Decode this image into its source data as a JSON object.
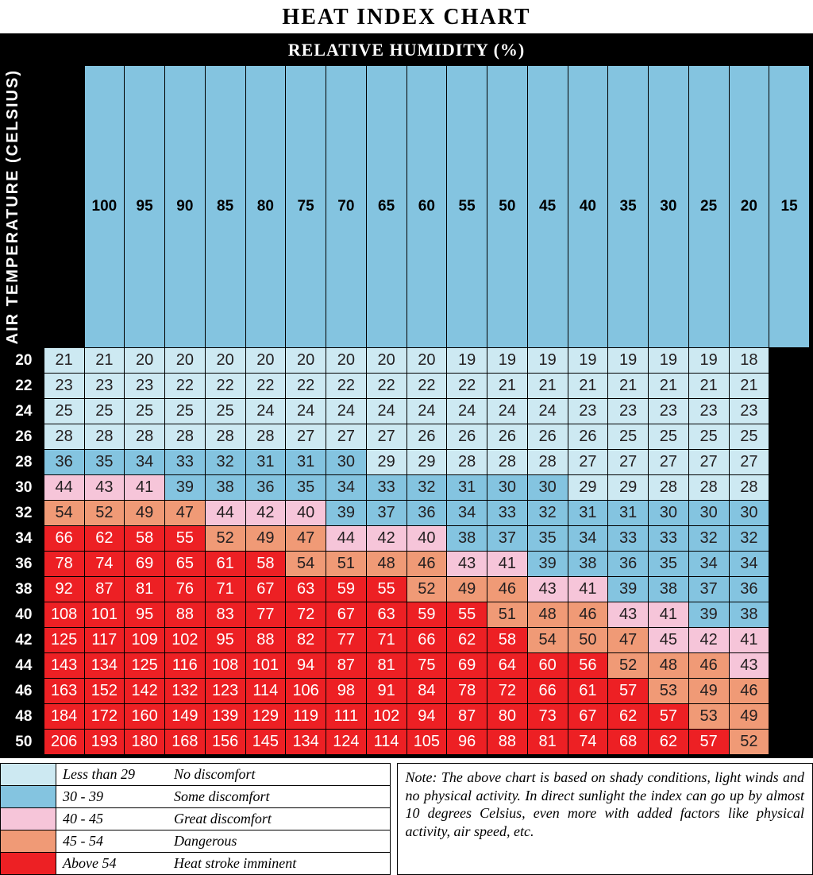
{
  "title": "HEAT INDEX CHART",
  "subtitle": "RELATIVE HUMIDITY (%)",
  "y_axis_label": "AIR TEMPERATURE (CELSIUS)",
  "colors": {
    "lightblue": "#cde9f2",
    "blue": "#84c4e0",
    "pink": "#f6c5d9",
    "orange": "#f09a76",
    "red": "#ed2024",
    "header_bg": "#000000",
    "header_fg": "#ffffff",
    "cell_text_dark": "#231f20",
    "cell_text_light": "#ffffff"
  },
  "bands": [
    {
      "key": "lightblue",
      "max": 29
    },
    {
      "key": "blue",
      "max": 39
    },
    {
      "key": "pink",
      "max": 45
    },
    {
      "key": "orange",
      "max": 54
    },
    {
      "key": "red",
      "max": 9999
    }
  ],
  "humidity_cols": [
    100,
    95,
    90,
    85,
    80,
    75,
    70,
    65,
    60,
    55,
    50,
    45,
    40,
    35,
    30,
    25,
    20,
    15
  ],
  "temp_rows": [
    20,
    22,
    24,
    26,
    28,
    30,
    32,
    34,
    36,
    38,
    40,
    42,
    44,
    46,
    48,
    50
  ],
  "grid": [
    [
      21,
      21,
      20,
      20,
      20,
      20,
      20,
      20,
      20,
      20,
      19,
      19,
      19,
      19,
      19,
      19,
      19,
      18
    ],
    [
      23,
      23,
      23,
      22,
      22,
      22,
      22,
      22,
      22,
      22,
      22,
      21,
      21,
      21,
      21,
      21,
      21,
      21
    ],
    [
      25,
      25,
      25,
      25,
      25,
      24,
      24,
      24,
      24,
      24,
      24,
      24,
      24,
      23,
      23,
      23,
      23,
      23
    ],
    [
      28,
      28,
      28,
      28,
      28,
      28,
      27,
      27,
      27,
      26,
      26,
      26,
      26,
      26,
      25,
      25,
      25,
      25
    ],
    [
      36,
      35,
      34,
      33,
      32,
      31,
      31,
      30,
      29,
      29,
      28,
      28,
      28,
      27,
      27,
      27,
      27,
      27
    ],
    [
      44,
      43,
      41,
      39,
      38,
      36,
      35,
      34,
      33,
      32,
      31,
      30,
      30,
      29,
      29,
      28,
      28,
      28
    ],
    [
      54,
      52,
      49,
      47,
      44,
      42,
      40,
      39,
      37,
      36,
      34,
      33,
      32,
      31,
      31,
      30,
      30,
      30
    ],
    [
      66,
      62,
      58,
      55,
      52,
      49,
      47,
      44,
      42,
      40,
      38,
      37,
      35,
      34,
      33,
      33,
      32,
      32
    ],
    [
      78,
      74,
      69,
      65,
      61,
      58,
      54,
      51,
      48,
      46,
      43,
      41,
      39,
      38,
      36,
      35,
      34,
      34
    ],
    [
      92,
      87,
      81,
      76,
      71,
      67,
      63,
      59,
      55,
      52,
      49,
      46,
      43,
      41,
      39,
      38,
      37,
      36
    ],
    [
      108,
      101,
      95,
      88,
      83,
      77,
      72,
      67,
      63,
      59,
      55,
      51,
      48,
      46,
      43,
      41,
      39,
      38
    ],
    [
      125,
      117,
      109,
      102,
      95,
      88,
      82,
      77,
      71,
      66,
      62,
      58,
      54,
      50,
      47,
      45,
      42,
      41
    ],
    [
      143,
      134,
      125,
      116,
      108,
      101,
      94,
      87,
      81,
      75,
      69,
      64,
      60,
      56,
      52,
      48,
      46,
      43
    ],
    [
      163,
      152,
      142,
      132,
      123,
      114,
      106,
      98,
      91,
      84,
      78,
      72,
      66,
      61,
      57,
      53,
      49,
      46
    ],
    [
      184,
      172,
      160,
      149,
      139,
      129,
      119,
      111,
      102,
      94,
      87,
      80,
      73,
      67,
      62,
      57,
      53,
      49
    ],
    [
      206,
      193,
      180,
      168,
      156,
      145,
      134,
      124,
      114,
      105,
      96,
      88,
      81,
      74,
      68,
      62,
      57,
      52
    ]
  ],
  "legend": [
    {
      "color_key": "lightblue",
      "range": "Less than 29",
      "label": "No discomfort"
    },
    {
      "color_key": "blue",
      "range": "30 - 39",
      "label": "Some discomfort"
    },
    {
      "color_key": "pink",
      "range": "40 - 45",
      "label": "Great discomfort"
    },
    {
      "color_key": "orange",
      "range": "45 - 54",
      "label": "Dangerous"
    },
    {
      "color_key": "red",
      "range": "Above 54",
      "label": "Heat stroke imminent"
    }
  ],
  "note": "Note: The above chart is based on shady conditions, light winds and no physical activity. In direct sunlight the index can go up by almost 10 degrees Celsius, even more with added factors like physical activity, air speed, etc."
}
